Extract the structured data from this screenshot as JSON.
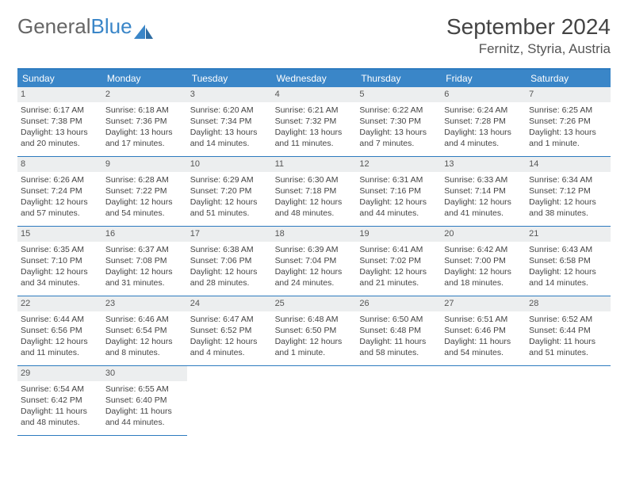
{
  "brand": {
    "part1": "General",
    "part2": "Blue"
  },
  "title": "September 2024",
  "location": "Fernitz, Styria, Austria",
  "colors": {
    "header_bg": "#3a86c8",
    "border": "#2d7bbf",
    "daynum_bg": "#eceeef",
    "text": "#444444",
    "page_bg": "#ffffff"
  },
  "weekdays": [
    "Sunday",
    "Monday",
    "Tuesday",
    "Wednesday",
    "Thursday",
    "Friday",
    "Saturday"
  ],
  "days": [
    {
      "n": "1",
      "sunrise": "Sunrise: 6:17 AM",
      "sunset": "Sunset: 7:38 PM",
      "daylight": "Daylight: 13 hours and 20 minutes."
    },
    {
      "n": "2",
      "sunrise": "Sunrise: 6:18 AM",
      "sunset": "Sunset: 7:36 PM",
      "daylight": "Daylight: 13 hours and 17 minutes."
    },
    {
      "n": "3",
      "sunrise": "Sunrise: 6:20 AM",
      "sunset": "Sunset: 7:34 PM",
      "daylight": "Daylight: 13 hours and 14 minutes."
    },
    {
      "n": "4",
      "sunrise": "Sunrise: 6:21 AM",
      "sunset": "Sunset: 7:32 PM",
      "daylight": "Daylight: 13 hours and 11 minutes."
    },
    {
      "n": "5",
      "sunrise": "Sunrise: 6:22 AM",
      "sunset": "Sunset: 7:30 PM",
      "daylight": "Daylight: 13 hours and 7 minutes."
    },
    {
      "n": "6",
      "sunrise": "Sunrise: 6:24 AM",
      "sunset": "Sunset: 7:28 PM",
      "daylight": "Daylight: 13 hours and 4 minutes."
    },
    {
      "n": "7",
      "sunrise": "Sunrise: 6:25 AM",
      "sunset": "Sunset: 7:26 PM",
      "daylight": "Daylight: 13 hours and 1 minute."
    },
    {
      "n": "8",
      "sunrise": "Sunrise: 6:26 AM",
      "sunset": "Sunset: 7:24 PM",
      "daylight": "Daylight: 12 hours and 57 minutes."
    },
    {
      "n": "9",
      "sunrise": "Sunrise: 6:28 AM",
      "sunset": "Sunset: 7:22 PM",
      "daylight": "Daylight: 12 hours and 54 minutes."
    },
    {
      "n": "10",
      "sunrise": "Sunrise: 6:29 AM",
      "sunset": "Sunset: 7:20 PM",
      "daylight": "Daylight: 12 hours and 51 minutes."
    },
    {
      "n": "11",
      "sunrise": "Sunrise: 6:30 AM",
      "sunset": "Sunset: 7:18 PM",
      "daylight": "Daylight: 12 hours and 48 minutes."
    },
    {
      "n": "12",
      "sunrise": "Sunrise: 6:31 AM",
      "sunset": "Sunset: 7:16 PM",
      "daylight": "Daylight: 12 hours and 44 minutes."
    },
    {
      "n": "13",
      "sunrise": "Sunrise: 6:33 AM",
      "sunset": "Sunset: 7:14 PM",
      "daylight": "Daylight: 12 hours and 41 minutes."
    },
    {
      "n": "14",
      "sunrise": "Sunrise: 6:34 AM",
      "sunset": "Sunset: 7:12 PM",
      "daylight": "Daylight: 12 hours and 38 minutes."
    },
    {
      "n": "15",
      "sunrise": "Sunrise: 6:35 AM",
      "sunset": "Sunset: 7:10 PM",
      "daylight": "Daylight: 12 hours and 34 minutes."
    },
    {
      "n": "16",
      "sunrise": "Sunrise: 6:37 AM",
      "sunset": "Sunset: 7:08 PM",
      "daylight": "Daylight: 12 hours and 31 minutes."
    },
    {
      "n": "17",
      "sunrise": "Sunrise: 6:38 AM",
      "sunset": "Sunset: 7:06 PM",
      "daylight": "Daylight: 12 hours and 28 minutes."
    },
    {
      "n": "18",
      "sunrise": "Sunrise: 6:39 AM",
      "sunset": "Sunset: 7:04 PM",
      "daylight": "Daylight: 12 hours and 24 minutes."
    },
    {
      "n": "19",
      "sunrise": "Sunrise: 6:41 AM",
      "sunset": "Sunset: 7:02 PM",
      "daylight": "Daylight: 12 hours and 21 minutes."
    },
    {
      "n": "20",
      "sunrise": "Sunrise: 6:42 AM",
      "sunset": "Sunset: 7:00 PM",
      "daylight": "Daylight: 12 hours and 18 minutes."
    },
    {
      "n": "21",
      "sunrise": "Sunrise: 6:43 AM",
      "sunset": "Sunset: 6:58 PM",
      "daylight": "Daylight: 12 hours and 14 minutes."
    },
    {
      "n": "22",
      "sunrise": "Sunrise: 6:44 AM",
      "sunset": "Sunset: 6:56 PM",
      "daylight": "Daylight: 12 hours and 11 minutes."
    },
    {
      "n": "23",
      "sunrise": "Sunrise: 6:46 AM",
      "sunset": "Sunset: 6:54 PM",
      "daylight": "Daylight: 12 hours and 8 minutes."
    },
    {
      "n": "24",
      "sunrise": "Sunrise: 6:47 AM",
      "sunset": "Sunset: 6:52 PM",
      "daylight": "Daylight: 12 hours and 4 minutes."
    },
    {
      "n": "25",
      "sunrise": "Sunrise: 6:48 AM",
      "sunset": "Sunset: 6:50 PM",
      "daylight": "Daylight: 12 hours and 1 minute."
    },
    {
      "n": "26",
      "sunrise": "Sunrise: 6:50 AM",
      "sunset": "Sunset: 6:48 PM",
      "daylight": "Daylight: 11 hours and 58 minutes."
    },
    {
      "n": "27",
      "sunrise": "Sunrise: 6:51 AM",
      "sunset": "Sunset: 6:46 PM",
      "daylight": "Daylight: 11 hours and 54 minutes."
    },
    {
      "n": "28",
      "sunrise": "Sunrise: 6:52 AM",
      "sunset": "Sunset: 6:44 PM",
      "daylight": "Daylight: 11 hours and 51 minutes."
    },
    {
      "n": "29",
      "sunrise": "Sunrise: 6:54 AM",
      "sunset": "Sunset: 6:42 PM",
      "daylight": "Daylight: 11 hours and 48 minutes."
    },
    {
      "n": "30",
      "sunrise": "Sunrise: 6:55 AM",
      "sunset": "Sunset: 6:40 PM",
      "daylight": "Daylight: 11 hours and 44 minutes."
    }
  ],
  "layout": {
    "columns": 7,
    "weeks": 5,
    "trailing_empty": 5,
    "font_size_cell": 10.5,
    "font_size_title": 28,
    "font_size_location": 17,
    "font_size_dayhead": 12
  }
}
